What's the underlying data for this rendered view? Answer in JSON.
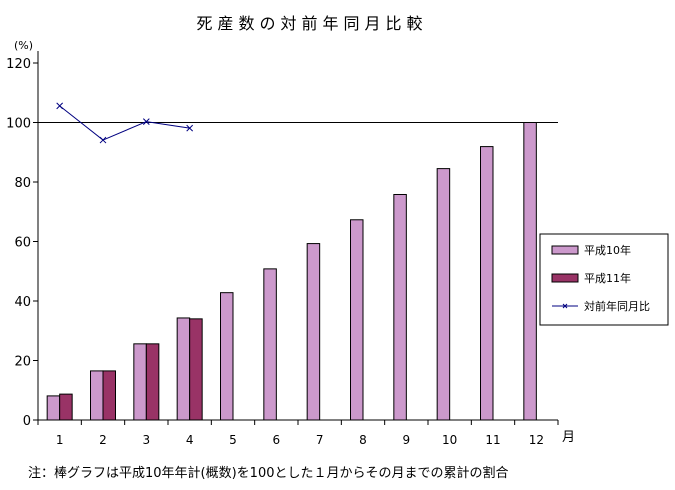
{
  "chart_data": {
    "type": "bar",
    "title": "死産数の対前年同月比較",
    "ylabel": "(%)",
    "xlabel": "月",
    "ylim": [
      0,
      120
    ],
    "yticks": [
      0,
      20,
      40,
      60,
      80,
      100,
      120
    ],
    "categories": [
      "1",
      "2",
      "3",
      "4",
      "5",
      "6",
      "7",
      "8",
      "9",
      "10",
      "11",
      "12"
    ],
    "reference_line": 100,
    "legend_position": "right",
    "series": [
      {
        "name": "平成10年",
        "type": "bar",
        "color": "#cc99cc",
        "values": [
          8.1,
          16.5,
          25.6,
          34.3,
          42.8,
          50.8,
          59.3,
          67.3,
          75.8,
          84.5,
          91.9,
          100
        ]
      },
      {
        "name": "平成11年",
        "type": "bar",
        "color": "#993366",
        "values": [
          8.7,
          16.5,
          25.6,
          34.0,
          null,
          null,
          null,
          null,
          null,
          null,
          null,
          null
        ]
      },
      {
        "name": "対前年同月比",
        "type": "line",
        "color": "#000080",
        "marker": "x",
        "values": [
          105.6,
          94.1,
          100.3,
          98.1,
          null,
          null,
          null,
          null,
          null,
          null,
          null,
          null
        ]
      }
    ],
    "footnote": "注：棒グラフは平成10年年計(概数)を100とした１月からその月までの累計の割合"
  }
}
